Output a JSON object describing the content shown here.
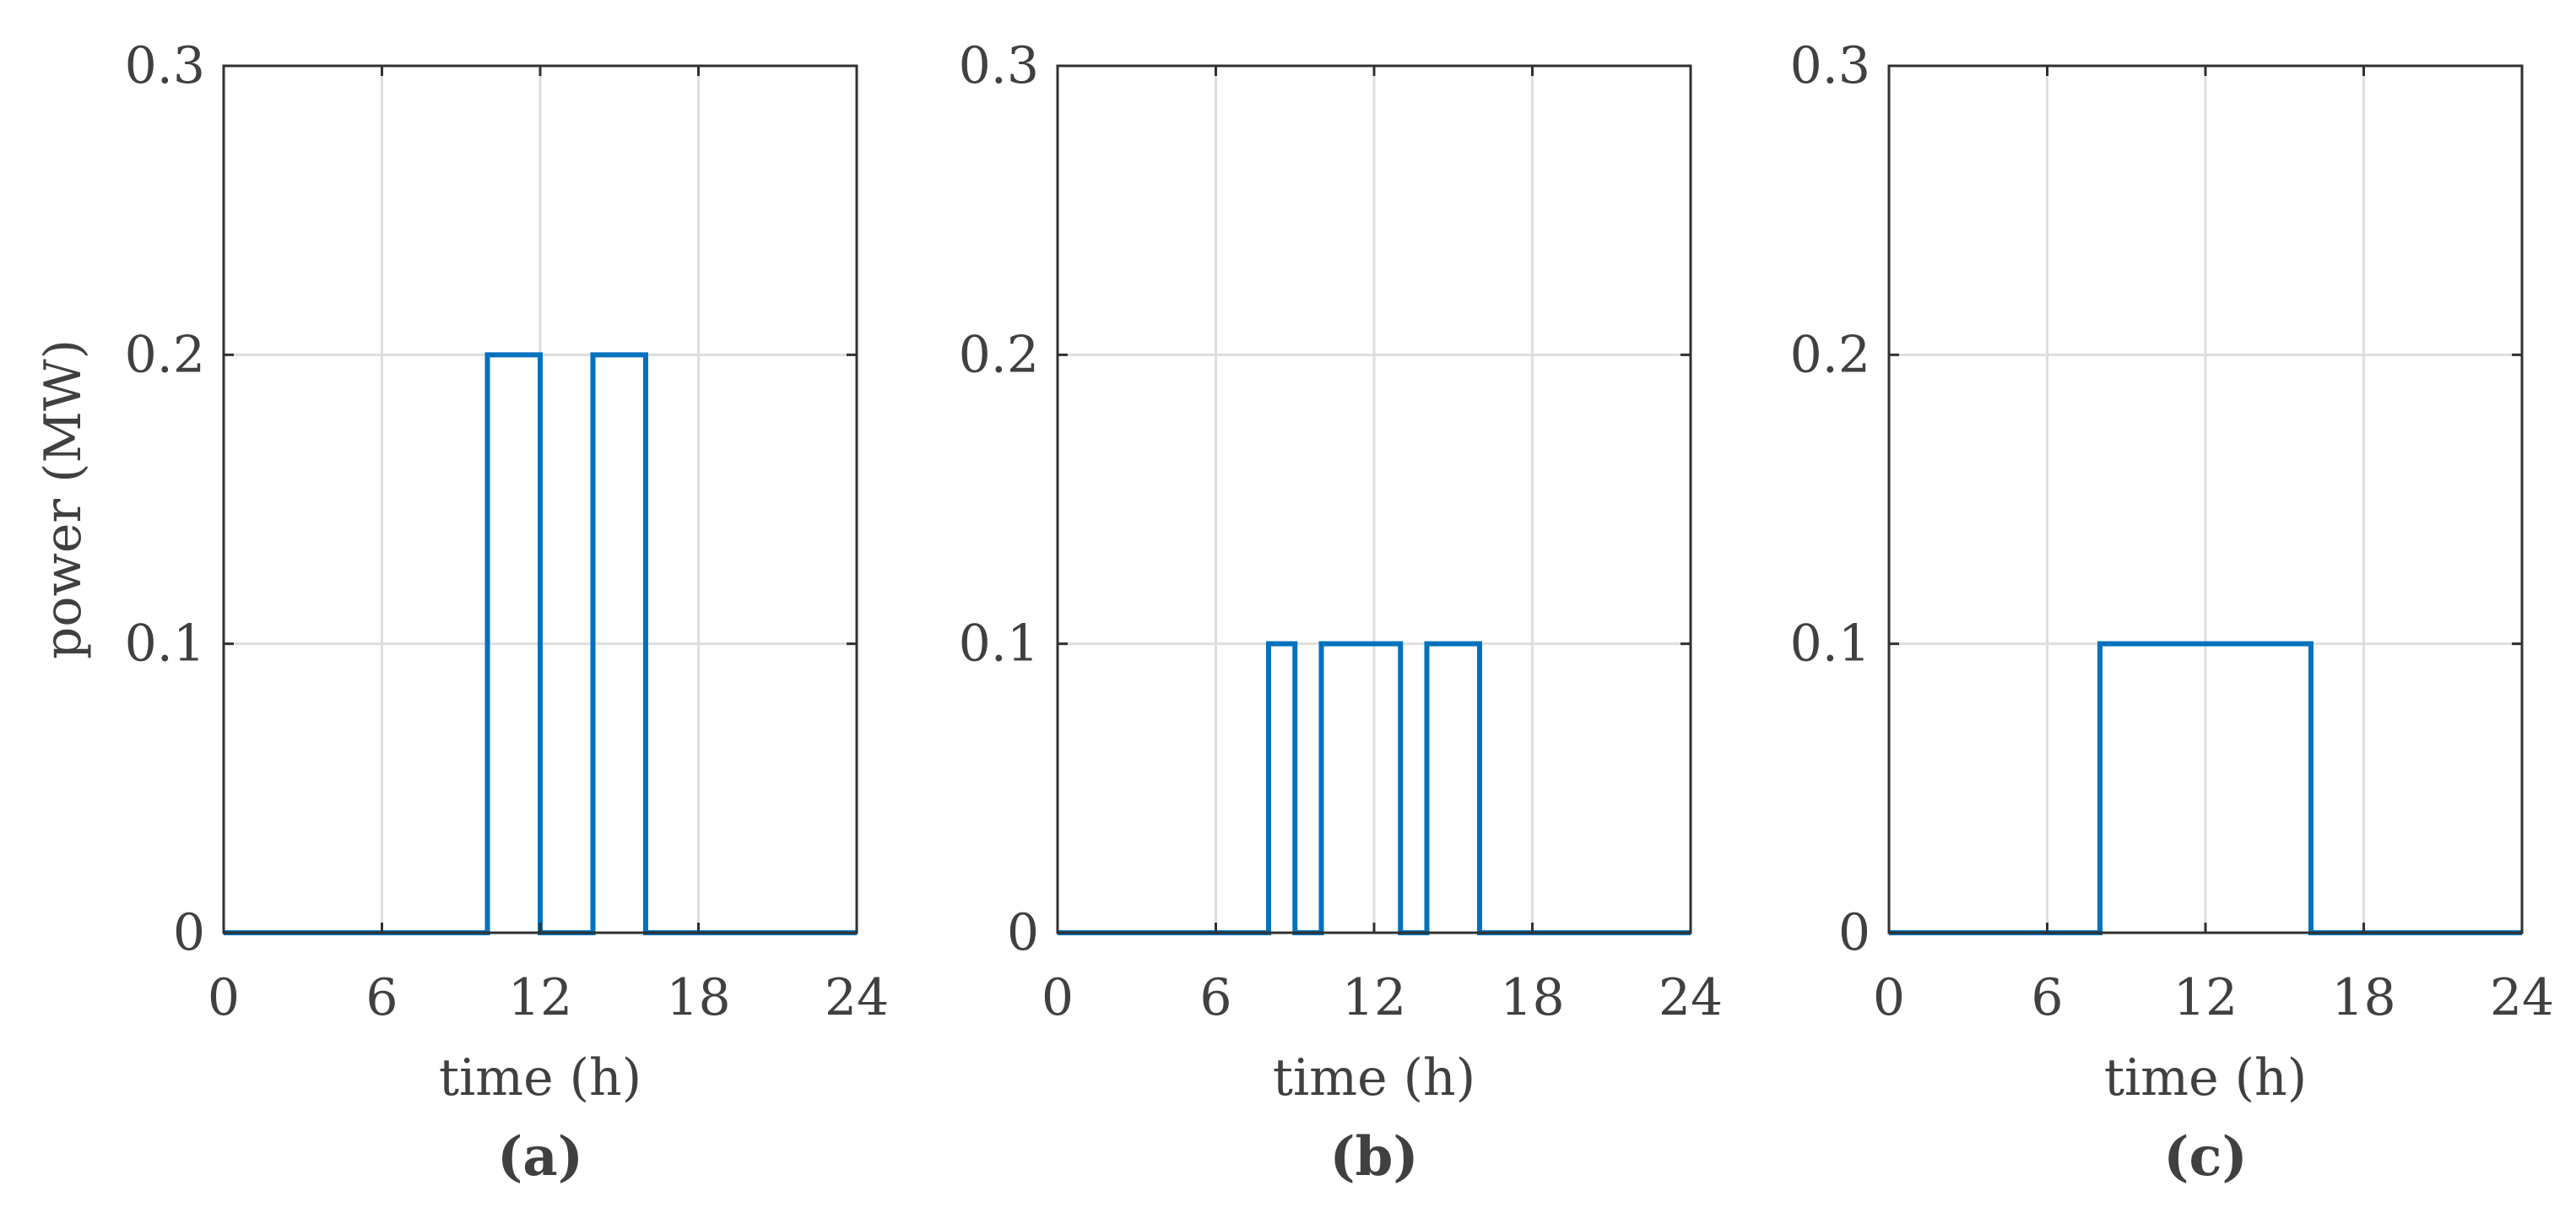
{
  "colors": {
    "series": "#0072BD",
    "axis": "#303030",
    "text": "#404040",
    "grid": "#dedede"
  },
  "chart_data": [
    {
      "type": "line",
      "panel_label": "(a)",
      "xlabel": "time (h)",
      "ylabel": "power (MW)",
      "xlim": [
        0,
        24
      ],
      "ylim": [
        0,
        0.3
      ],
      "xticks": [
        0,
        6,
        12,
        18,
        24
      ],
      "yticks": [
        0,
        0.1,
        0.2,
        0.3
      ],
      "xtick_labels": [
        "0",
        "6",
        "12",
        "18",
        "24"
      ],
      "ytick_labels": [
        "0",
        "0.1",
        "0.2",
        "0.3"
      ],
      "grid": true,
      "series": [
        {
          "x": [
            0,
            10,
            10,
            12,
            12,
            14,
            14,
            16,
            16,
            24
          ],
          "y": [
            0,
            0,
            0.2,
            0.2,
            0,
            0,
            0.2,
            0.2,
            0,
            0
          ]
        }
      ]
    },
    {
      "type": "line",
      "panel_label": "(b)",
      "xlabel": "time (h)",
      "ylabel": "",
      "xlim": [
        0,
        24
      ],
      "ylim": [
        0,
        0.3
      ],
      "xticks": [
        0,
        6,
        12,
        18,
        24
      ],
      "yticks": [
        0,
        0.1,
        0.2,
        0.3
      ],
      "xtick_labels": [
        "0",
        "6",
        "12",
        "18",
        "24"
      ],
      "ytick_labels": [
        "0",
        "0.1",
        "0.2",
        "0.3"
      ],
      "grid": true,
      "series": [
        {
          "x": [
            0,
            8,
            8,
            9,
            9,
            10,
            10,
            13,
            13,
            14,
            14,
            16,
            16,
            24
          ],
          "y": [
            0,
            0,
            0.1,
            0.1,
            0,
            0,
            0.1,
            0.1,
            0,
            0,
            0.1,
            0.1,
            0,
            0
          ]
        }
      ]
    },
    {
      "type": "line",
      "panel_label": "(c)",
      "xlabel": "time (h)",
      "ylabel": "",
      "xlim": [
        0,
        24
      ],
      "ylim": [
        0,
        0.3
      ],
      "xticks": [
        0,
        6,
        12,
        18,
        24
      ],
      "yticks": [
        0,
        0.1,
        0.2,
        0.3
      ],
      "xtick_labels": [
        "0",
        "6",
        "12",
        "18",
        "24"
      ],
      "ytick_labels": [
        "0",
        "0.1",
        "0.2",
        "0.3"
      ],
      "grid": true,
      "series": [
        {
          "x": [
            0,
            8,
            8,
            16,
            16,
            24
          ],
          "y": [
            0,
            0,
            0.1,
            0.1,
            0,
            0
          ]
        }
      ]
    }
  ]
}
